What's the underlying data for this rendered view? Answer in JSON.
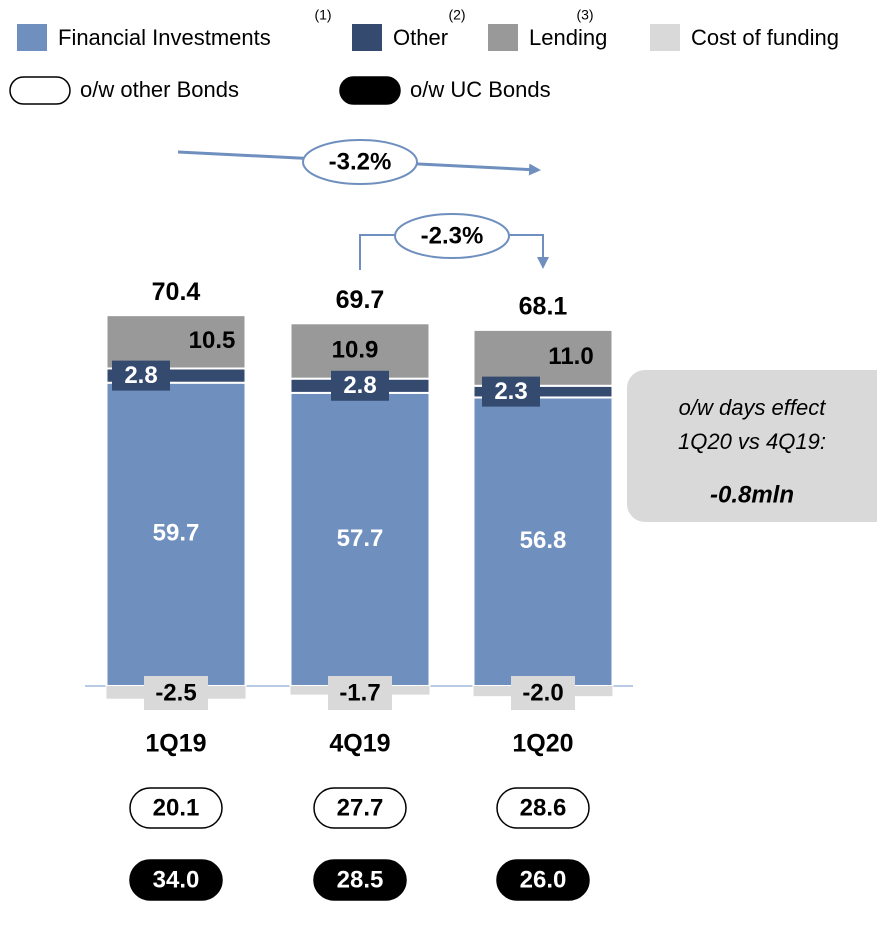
{
  "chart_data": {
    "type": "stacked_bar",
    "categories": [
      "1Q19",
      "4Q19",
      "1Q20"
    ],
    "series": [
      {
        "name": "Financial Investments",
        "superscript": "(1)",
        "color": "#6f8fbe",
        "values": [
          59.7,
          57.7,
          56.8
        ],
        "value_labels": [
          "59.7",
          "57.7",
          "56.8"
        ]
      },
      {
        "name": "Other",
        "superscript": "(2)",
        "color": "#344a6f",
        "values": [
          2.8,
          2.8,
          2.3
        ],
        "value_labels": [
          "2.8",
          "2.8",
          "2.3"
        ]
      },
      {
        "name": "Lending",
        "superscript": "(3)",
        "color": "#999999",
        "values": [
          10.5,
          10.9,
          11.0
        ],
        "value_labels": [
          "10.5",
          "10.9",
          "11.0"
        ]
      },
      {
        "name": "Cost of funding",
        "color": "#d9d9d9",
        "values": [
          -2.5,
          -1.7,
          -2.0
        ],
        "value_labels": [
          "-2.5",
          "-1.7",
          "-2.0"
        ]
      }
    ],
    "totals": [
      70.4,
      69.7,
      68.1
    ],
    "bond_series": [
      {
        "name": "o/w other Bonds",
        "color": "#ffffff",
        "values": [
          20.1,
          27.7,
          28.6
        ],
        "value_labels": [
          "20.1",
          "27.7",
          "28.6"
        ]
      },
      {
        "name": "o/w UC Bonds",
        "color": "#000000",
        "values": [
          34.0,
          28.5,
          26.0
        ],
        "value_labels": [
          "34.0",
          "28.5",
          "26.0"
        ]
      }
    ],
    "annotations": [
      "-3.2%",
      "-2.3%"
    ],
    "note": [
      "o/w days effect",
      "1Q20 vs 4Q19:",
      "-0.8mln"
    ]
  }
}
